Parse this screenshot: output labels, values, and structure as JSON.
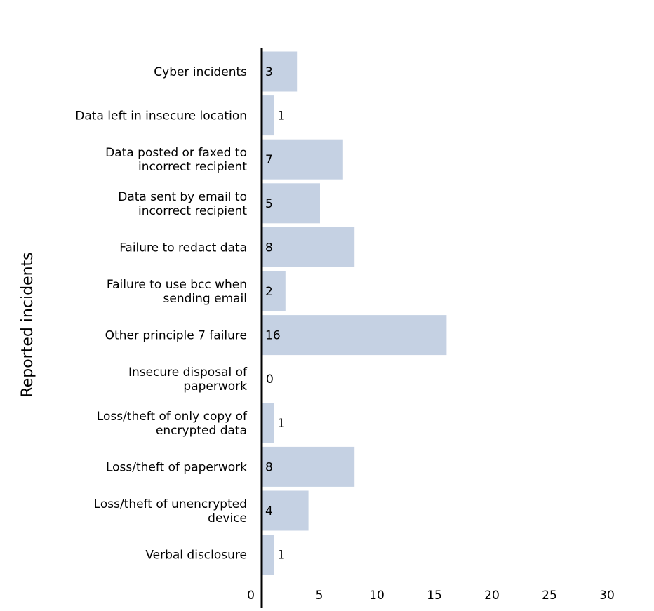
{
  "chart_data": {
    "type": "bar",
    "orientation": "horizontal",
    "categories": [
      [
        "Cyber incidents"
      ],
      [
        "Data left in insecure location"
      ],
      [
        "Data posted or faxed to",
        "incorrect recipient"
      ],
      [
        "Data sent by email to",
        "incorrect recipient"
      ],
      [
        "Failure to redact data"
      ],
      [
        "Failure to use bcc when",
        "sending email"
      ],
      [
        "Other principle 7 failure"
      ],
      [
        "Insecure disposal of",
        "paperwork"
      ],
      [
        "Loss/theft of only copy of",
        "encrypted data"
      ],
      [
        "Loss/theft of paperwork"
      ],
      [
        "Loss/theft of unencrypted",
        "device"
      ],
      [
        "Verbal disclosure"
      ]
    ],
    "values": [
      3,
      1,
      7,
      5,
      8,
      2,
      16,
      0,
      1,
      8,
      4,
      1
    ],
    "ylabel": "Reported incidents",
    "xlim": [
      0,
      35
    ],
    "xticks": [
      0,
      5,
      10,
      15,
      20,
      25,
      30,
      35
    ],
    "grid": false,
    "bar_color": "#c5d1e3",
    "axis_color": "#000000"
  }
}
